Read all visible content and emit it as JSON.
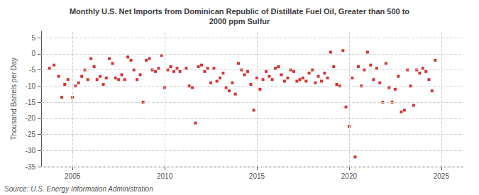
{
  "chart_data": {
    "type": "scatter",
    "title": "Monthly U.S. Net Imports from Dominican Republic of Distillate Fuel Oil, Greater than 500 to\n2000 ppm Sulfur",
    "ylabel": "Thousand Barrels per Day",
    "annotations": [
      "Source: U.S. Energy Information Administration"
    ],
    "color": "#cc0000",
    "marker": "square",
    "grid": true,
    "ylim": [
      -35,
      7
    ],
    "yticks": [
      5,
      0,
      -5,
      -10,
      -15,
      -20,
      -25,
      -30,
      -35
    ],
    "xlim": [
      2003.3,
      2026.2
    ],
    "xticks": [
      2005,
      2010,
      2015,
      2020,
      2025
    ],
    "x": [
      2003.75,
      2004.0,
      2004.25,
      2004.42,
      2004.58,
      2004.75,
      2005.0,
      2005.17,
      2005.33,
      2005.5,
      2005.67,
      2005.83,
      2006.0,
      2006.17,
      2006.33,
      2006.5,
      2006.67,
      2006.83,
      2007.0,
      2007.17,
      2007.33,
      2007.5,
      2007.67,
      2007.83,
      2008.0,
      2008.17,
      2008.33,
      2008.5,
      2008.67,
      2008.83,
      2009.0,
      2009.17,
      2009.33,
      2009.5,
      2009.67,
      2009.83,
      2010.0,
      2010.17,
      2010.33,
      2010.5,
      2010.67,
      2010.83,
      2011.17,
      2011.33,
      2011.5,
      2011.67,
      2011.83,
      2012.0,
      2012.17,
      2012.33,
      2012.5,
      2012.67,
      2012.83,
      2013.0,
      2013.17,
      2013.33,
      2013.5,
      2013.67,
      2013.83,
      2014.0,
      2014.17,
      2014.33,
      2014.5,
      2014.67,
      2014.83,
      2015.0,
      2015.17,
      2015.33,
      2015.5,
      2015.67,
      2015.83,
      2016.0,
      2016.17,
      2016.33,
      2016.5,
      2016.67,
      2016.83,
      2017.0,
      2017.17,
      2017.33,
      2017.5,
      2017.67,
      2017.83,
      2018.0,
      2018.17,
      2018.33,
      2018.5,
      2018.67,
      2018.83,
      2019.0,
      2019.17,
      2019.33,
      2019.5,
      2019.67,
      2019.83,
      2020.0,
      2020.17,
      2020.33,
      2020.5,
      2020.67,
      2020.83,
      2021.0,
      2021.17,
      2021.33,
      2021.5,
      2021.67,
      2021.83,
      2022.0,
      2022.17,
      2022.33,
      2022.5,
      2022.67,
      2022.83,
      2023.0,
      2023.17,
      2023.33,
      2023.5,
      2023.67,
      2023.83,
      2024.0,
      2024.17,
      2024.33,
      2024.5,
      2024.67
    ],
    "values": [
      -4.5,
      -3.5,
      -7.0,
      -13.5,
      -9.5,
      -8.0,
      -13.5,
      -10.0,
      -9.0,
      -7.0,
      -5.0,
      -8.0,
      -1.5,
      -4.0,
      -8.0,
      -7.0,
      -9.5,
      -7.5,
      -1.5,
      -3.0,
      -7.5,
      -8.0,
      -6.5,
      -8.0,
      -1.0,
      -2.0,
      -5.0,
      -8.0,
      -6.5,
      -15.0,
      -2.0,
      -1.5,
      -5.0,
      -5.5,
      -4.5,
      -0.5,
      -10.5,
      -5.0,
      -4.0,
      -5.5,
      -4.5,
      -5.5,
      -4.5,
      -10.0,
      -10.5,
      -21.5,
      -4.0,
      -3.5,
      -5.5,
      -4.5,
      -9.0,
      -4.5,
      -8.5,
      -7.5,
      -6.0,
      -10.5,
      -11.5,
      -9.0,
      -12.5,
      -3.0,
      -5.0,
      -6.5,
      -5.5,
      -9.5,
      -17.5,
      -7.5,
      -11.0,
      -8.0,
      -5.5,
      -7.0,
      -8.0,
      -4.5,
      -4.0,
      -6.5,
      -8.5,
      -7.5,
      -5.0,
      -5.5,
      -8.5,
      -8.0,
      -7.5,
      -8.5,
      -6.0,
      -5.0,
      -9.0,
      -7.0,
      -8.5,
      -6.0,
      -7.5,
      0.5,
      -4.0,
      -9.5,
      -10.0,
      1.0,
      -16.5,
      -22.5,
      -7.5,
      -32.0,
      -4.0,
      -10.0,
      -5.0,
      0.5,
      -3.5,
      -8.0,
      -4.5,
      -9.0,
      -15.0,
      -3.0,
      -10.5,
      -15.0,
      -11.0,
      -7.0,
      -18.0,
      -17.5,
      -5.0,
      -10.0,
      -16.0,
      -5.0,
      -6.0,
      -4.5,
      -5.5,
      -8.0,
      -11.5,
      -2.0
    ]
  }
}
